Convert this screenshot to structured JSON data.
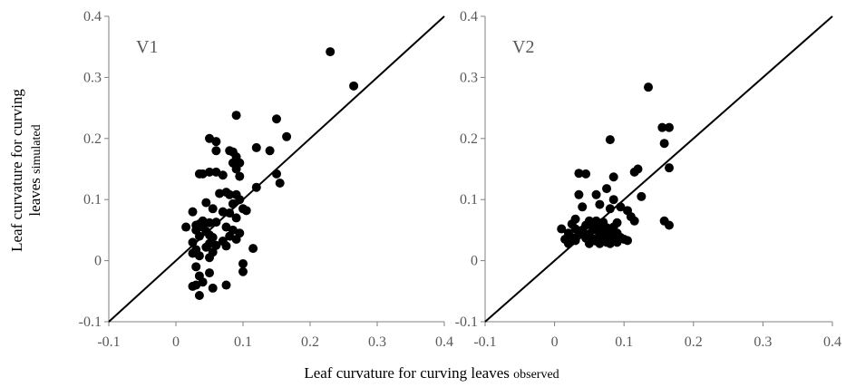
{
  "chart_data": [
    {
      "type": "scatter",
      "panel_label": "V1",
      "xlim": [
        -0.1,
        0.4
      ],
      "ylim": [
        -0.1,
        0.4
      ],
      "x_ticks": [
        "-0.1",
        "0",
        "0.1",
        "0.2",
        "0.3",
        "0.4"
      ],
      "y_ticks": [
        "-0.1",
        "0",
        "0.1",
        "0.2",
        "0.3",
        "0.4"
      ],
      "reference_line": "1:1",
      "grid": false,
      "points": [
        [
          0.23,
          0.342
        ],
        [
          0.265,
          0.286
        ],
        [
          0.09,
          0.238
        ],
        [
          0.15,
          0.232
        ],
        [
          0.165,
          0.203
        ],
        [
          0.05,
          0.2
        ],
        [
          0.06,
          0.195
        ],
        [
          0.12,
          0.185
        ],
        [
          0.14,
          0.18
        ],
        [
          0.06,
          0.18
        ],
        [
          0.08,
          0.18
        ],
        [
          0.085,
          0.178
        ],
        [
          0.09,
          0.17
        ],
        [
          0.085,
          0.16
        ],
        [
          0.095,
          0.16
        ],
        [
          0.09,
          0.15
        ],
        [
          0.05,
          0.145
        ],
        [
          0.06,
          0.145
        ],
        [
          0.035,
          0.142
        ],
        [
          0.04,
          0.142
        ],
        [
          0.15,
          0.142
        ],
        [
          0.07,
          0.14
        ],
        [
          0.095,
          0.138
        ],
        [
          0.155,
          0.127
        ],
        [
          0.12,
          0.12
        ],
        [
          0.075,
          0.112
        ],
        [
          0.065,
          0.11
        ],
        [
          0.08,
          0.108
        ],
        [
          0.09,
          0.108
        ],
        [
          0.095,
          0.1
        ],
        [
          0.045,
          0.095
        ],
        [
          0.085,
          0.093
        ],
        [
          0.055,
          0.085
        ],
        [
          0.1,
          0.085
        ],
        [
          0.07,
          0.08
        ],
        [
          0.105,
          0.082
        ],
        [
          0.025,
          0.08
        ],
        [
          0.08,
          0.078
        ],
        [
          0.09,
          0.07
        ],
        [
          0.04,
          0.065
        ],
        [
          0.06,
          0.063
        ],
        [
          0.05,
          0.062
        ],
        [
          0.035,
          0.06
        ],
        [
          0.03,
          0.058
        ],
        [
          0.075,
          0.055
        ],
        [
          0.04,
          0.055
        ],
        [
          0.015,
          0.055
        ],
        [
          0.03,
          0.05
        ],
        [
          0.085,
          0.05
        ],
        [
          0.045,
          0.048
        ],
        [
          0.095,
          0.045
        ],
        [
          0.05,
          0.042
        ],
        [
          0.08,
          0.04
        ],
        [
          0.035,
          0.04
        ],
        [
          0.055,
          0.038
        ],
        [
          0.09,
          0.035
        ],
        [
          0.07,
          0.032
        ],
        [
          0.025,
          0.03
        ],
        [
          0.05,
          0.028
        ],
        [
          0.06,
          0.025
        ],
        [
          0.075,
          0.024
        ],
        [
          0.045,
          0.022
        ],
        [
          0.115,
          0.02
        ],
        [
          0.03,
          0.018
        ],
        [
          0.055,
          0.014
        ],
        [
          0.025,
          0.012
        ],
        [
          0.035,
          0.008
        ],
        [
          0.05,
          0.005
        ],
        [
          0.1,
          -0.005
        ],
        [
          0.03,
          -0.01
        ],
        [
          0.1,
          -0.018
        ],
        [
          0.05,
          -0.02
        ],
        [
          0.035,
          -0.025
        ],
        [
          0.04,
          -0.035
        ],
        [
          0.075,
          -0.04
        ],
        [
          0.03,
          -0.04
        ],
        [
          0.025,
          -0.042
        ],
        [
          0.055,
          -0.045
        ],
        [
          0.035,
          -0.057
        ]
      ]
    },
    {
      "type": "scatter",
      "panel_label": "V2",
      "xlim": [
        -0.1,
        0.4
      ],
      "ylim": [
        -0.1,
        0.4
      ],
      "x_ticks": [
        "-0.1",
        "0",
        "0.1",
        "0.2",
        "0.3",
        "0.4"
      ],
      "y_ticks": [
        "-0.1",
        "0",
        "0.1",
        "0.2",
        "0.3",
        "0.4"
      ],
      "reference_line": "1:1",
      "grid": false,
      "points": [
        [
          0.135,
          0.284
        ],
        [
          0.155,
          0.218
        ],
        [
          0.165,
          0.218
        ],
        [
          0.08,
          0.198
        ],
        [
          0.158,
          0.192
        ],
        [
          0.165,
          0.152
        ],
        [
          0.12,
          0.15
        ],
        [
          0.115,
          0.145
        ],
        [
          0.035,
          0.143
        ],
        [
          0.045,
          0.142
        ],
        [
          0.085,
          0.137
        ],
        [
          0.075,
          0.118
        ],
        [
          0.06,
          0.108
        ],
        [
          0.125,
          0.105
        ],
        [
          0.085,
          0.1
        ],
        [
          0.035,
          0.108
        ],
        [
          0.065,
          0.092
        ],
        [
          0.04,
          0.088
        ],
        [
          0.095,
          0.088
        ],
        [
          0.08,
          0.085
        ],
        [
          0.105,
          0.082
        ],
        [
          0.11,
          0.072
        ],
        [
          0.115,
          0.065
        ],
        [
          0.158,
          0.065
        ],
        [
          0.03,
          0.068
        ],
        [
          0.05,
          0.065
        ],
        [
          0.06,
          0.065
        ],
        [
          0.07,
          0.063
        ],
        [
          0.09,
          0.062
        ],
        [
          0.165,
          0.058
        ],
        [
          0.025,
          0.06
        ],
        [
          0.045,
          0.058
        ],
        [
          0.055,
          0.055
        ],
        [
          0.065,
          0.055
        ],
        [
          0.075,
          0.054
        ],
        [
          0.085,
          0.055
        ],
        [
          0.01,
          0.052
        ],
        [
          0.03,
          0.052
        ],
        [
          0.04,
          0.05
        ],
        [
          0.06,
          0.05
        ],
        [
          0.07,
          0.048
        ],
        [
          0.08,
          0.048
        ],
        [
          0.09,
          0.045
        ],
        [
          0.02,
          0.045
        ],
        [
          0.035,
          0.045
        ],
        [
          0.05,
          0.044
        ],
        [
          0.065,
          0.043
        ],
        [
          0.075,
          0.04
        ],
        [
          0.085,
          0.04
        ],
        [
          0.095,
          0.038
        ],
        [
          0.025,
          0.038
        ],
        [
          0.045,
          0.037
        ],
        [
          0.055,
          0.036
        ],
        [
          0.07,
          0.035
        ],
        [
          0.08,
          0.035
        ],
        [
          0.1,
          0.035
        ],
        [
          0.015,
          0.035
        ],
        [
          0.03,
          0.033
        ],
        [
          0.06,
          0.032
        ],
        [
          0.075,
          0.03
        ],
        [
          0.09,
          0.03
        ],
        [
          0.105,
          0.033
        ],
        [
          0.02,
          0.028
        ],
        [
          0.05,
          0.028
        ],
        [
          0.065,
          0.028
        ],
        [
          0.08,
          0.028
        ]
      ]
    }
  ],
  "axis_titles": {
    "y_line1": "Leaf curvature for curving",
    "y_line2_main": "leaves ",
    "y_line2_small": "simulated",
    "x_main": "Leaf curvature for curving leaves ",
    "x_small": "observed"
  }
}
